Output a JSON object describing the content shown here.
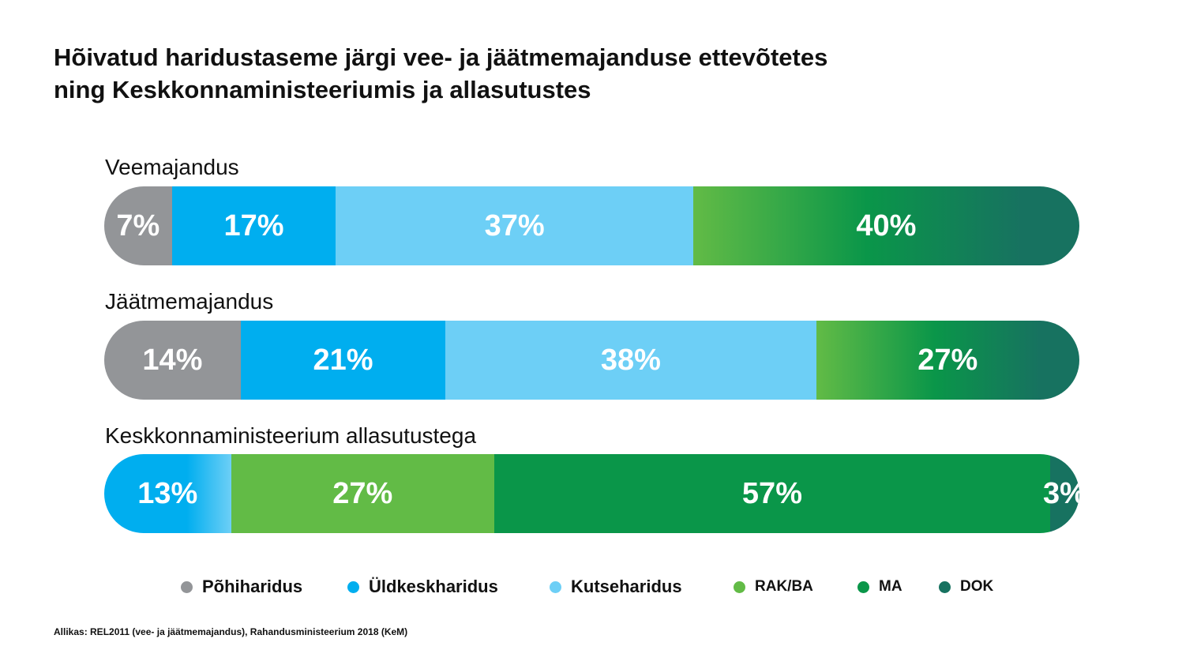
{
  "title": {
    "line1": "Hõivatud haridustaseme järgi vee- ja jäätmemajanduse ettevõtetes",
    "line2": "ning Keskkonnaministeeriumis ja allasutustes"
  },
  "colors": {
    "Põhiharidus": "#939598",
    "Üldkeskharidus": "#00aeef",
    "Kutseharidus": "#6dcff6",
    "RAK/BA": "#62bb46",
    "MA": "#0a9649",
    "DOK": "#177260"
  },
  "chart_data": {
    "type": "bar",
    "orientation": "horizontal-stacked-100",
    "categories": [
      "Veemajandus",
      "Jäätmemajandus",
      "Keskkonnaministeerium allasutustega"
    ],
    "legend": [
      "Põhiharidus",
      "Üldkeskharidus",
      "Kutseharidus",
      "RAK/BA",
      "MA",
      "DOK"
    ],
    "legend_placement": "bottom",
    "bars": [
      {
        "segments": [
          {
            "value": 7,
            "label": "7%",
            "style": "Põhiharidus"
          },
          {
            "value": 17,
            "label": "17%",
            "style": "Üldkeskharidus"
          },
          {
            "value": 37,
            "label": "37%",
            "style": "Kutseharidus"
          },
          {
            "value": 40,
            "label": "40%",
            "style": "gradient-green"
          }
        ]
      },
      {
        "segments": [
          {
            "value": 14,
            "label": "14%",
            "style": "Põhiharidus"
          },
          {
            "value": 21,
            "label": "21%",
            "style": "Üldkeskharidus"
          },
          {
            "value": 38,
            "label": "38%",
            "style": "Kutseharidus"
          },
          {
            "value": 27,
            "label": "27%",
            "style": "gradient-green"
          }
        ]
      },
      {
        "segments": [
          {
            "value": 13,
            "label": "13%",
            "style": "gradient-blue"
          },
          {
            "value": 27,
            "label": "27%",
            "style": "RAK/BA"
          },
          {
            "value": 57,
            "label": "57%",
            "style": "MA"
          },
          {
            "value": 3,
            "label": "3%",
            "style": "DOK"
          }
        ]
      }
    ],
    "grid": false
  },
  "source": "Allikas: REL2011 (vee- ja jäätmemajandus), Rahandusministeerium 2018 (KeM)"
}
